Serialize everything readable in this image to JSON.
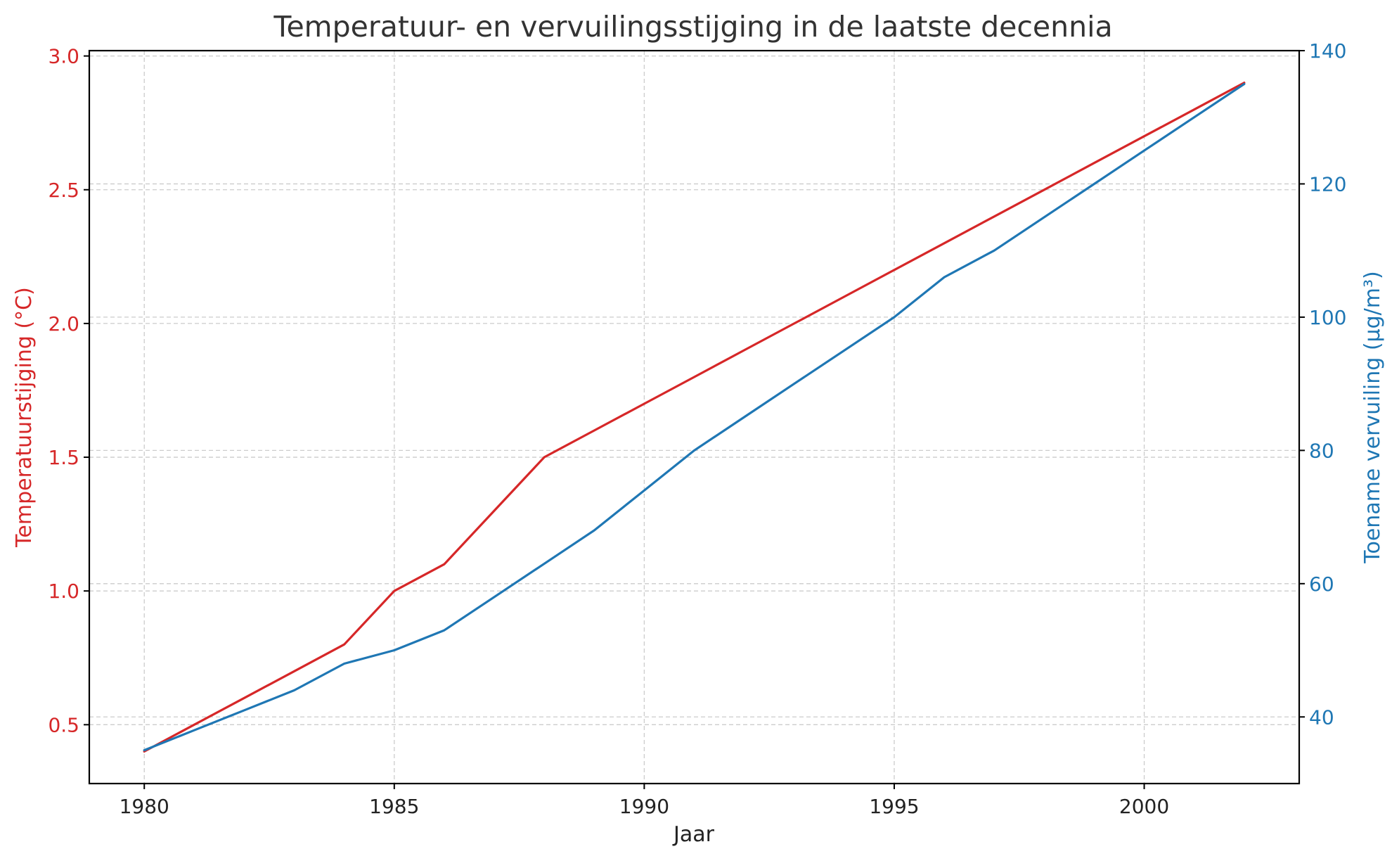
{
  "chart_data": {
    "type": "line",
    "title": "Temperatuur- en vervuilingsstijging in de laatste decennia",
    "xlabel": "Jaar",
    "x": [
      1980,
      1981,
      1982,
      1983,
      1984,
      1985,
      1986,
      1987,
      1988,
      1989,
      1990,
      1991,
      1992,
      1993,
      1994,
      1995,
      1996,
      1997,
      1998,
      1999,
      2000,
      2001,
      2002
    ],
    "xlim": [
      1978.9,
      2003.1
    ],
    "xticks": [
      "1980",
      "1985",
      "1990",
      "1995",
      "2000"
    ],
    "y_left": {
      "label": "Temperatuurstijging (°C)",
      "color": "#d62728",
      "ylim": [
        0.28,
        3.02
      ],
      "ticks": [
        "0.5",
        "1.0",
        "1.5",
        "2.0",
        "2.5",
        "3.0"
      ]
    },
    "y_right": {
      "label": "Toename vervuiling (µg/m³)",
      "color": "#1f77b4",
      "ylim": [
        30,
        140
      ],
      "ticks": [
        "40",
        "60",
        "80",
        "100",
        "120",
        "140"
      ]
    },
    "series": [
      {
        "axis": "left",
        "color": "#d62728",
        "values": [
          0.4,
          0.5,
          0.6,
          0.7,
          0.8,
          1.0,
          1.1,
          1.3,
          1.5,
          1.6,
          1.7,
          1.8,
          1.9,
          2.0,
          2.1,
          2.2,
          2.3,
          2.4,
          2.5,
          2.6,
          2.7,
          2.8,
          2.9
        ]
      },
      {
        "axis": "right",
        "color": "#1f77b4",
        "values": [
          35,
          38,
          41,
          44,
          48,
          50,
          53,
          58,
          63,
          68,
          74,
          80,
          85,
          90,
          95,
          100,
          106,
          110,
          115,
          120,
          125,
          130,
          135
        ]
      }
    ],
    "grid": true
  }
}
